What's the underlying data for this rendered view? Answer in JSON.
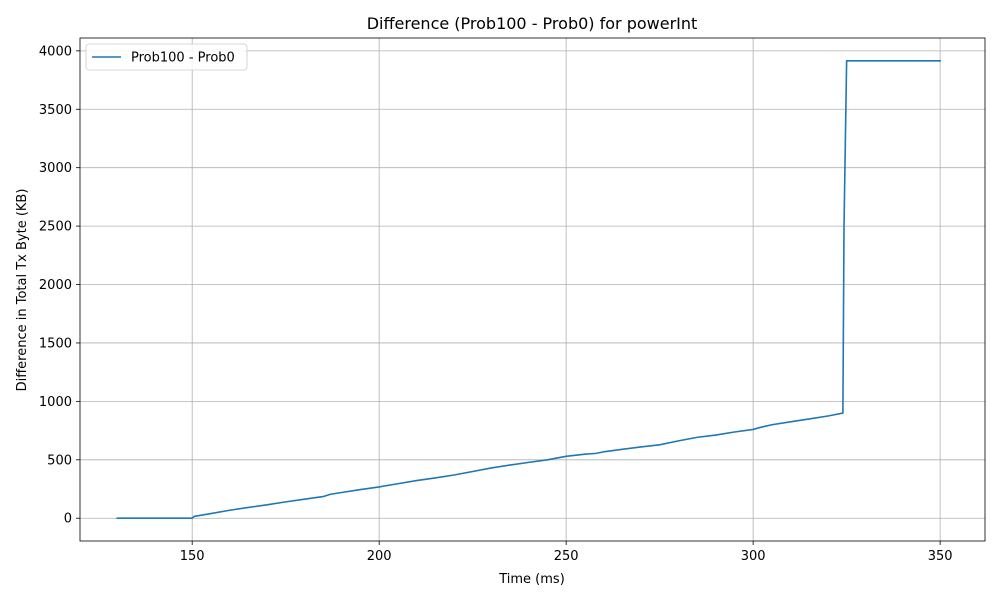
{
  "chart_data": {
    "type": "line",
    "title": "Difference (Prob100 - Prob0) for powerInt",
    "xlabel": "Time (ms)",
    "ylabel": "Difference in Total Tx Byte (KB)",
    "xlim": [
      120,
      362
    ],
    "ylim": [
      -195,
      4110
    ],
    "xticks": [
      150,
      200,
      250,
      300,
      350
    ],
    "yticks": [
      0,
      500,
      1000,
      1500,
      2000,
      2500,
      3000,
      3500,
      4000
    ],
    "grid": true,
    "legend_position": "top-left",
    "line_color": "#1f77b4",
    "series": [
      {
        "name": "Prob100 - Prob0",
        "x": [
          130,
          140,
          150,
          150.5,
          155,
          160,
          165,
          170,
          175,
          180,
          185,
          187,
          190,
          195,
          200,
          205,
          210,
          215,
          220,
          225,
          230,
          235,
          240,
          245,
          250,
          255,
          258,
          260,
          265,
          270,
          275,
          280,
          285,
          290,
          295,
          300,
          302,
          305,
          310,
          315,
          320,
          324,
          324.3,
          325,
          330,
          340,
          350
        ],
        "y": [
          0,
          0,
          0,
          15,
          40,
          68,
          92,
          115,
          140,
          163,
          185,
          205,
          220,
          245,
          268,
          295,
          322,
          345,
          370,
          400,
          430,
          455,
          478,
          500,
          530,
          548,
          555,
          568,
          590,
          610,
          628,
          662,
          692,
          712,
          738,
          760,
          778,
          800,
          825,
          850,
          875,
          900,
          2500,
          3915,
          3915,
          3915,
          3915
        ]
      }
    ]
  }
}
